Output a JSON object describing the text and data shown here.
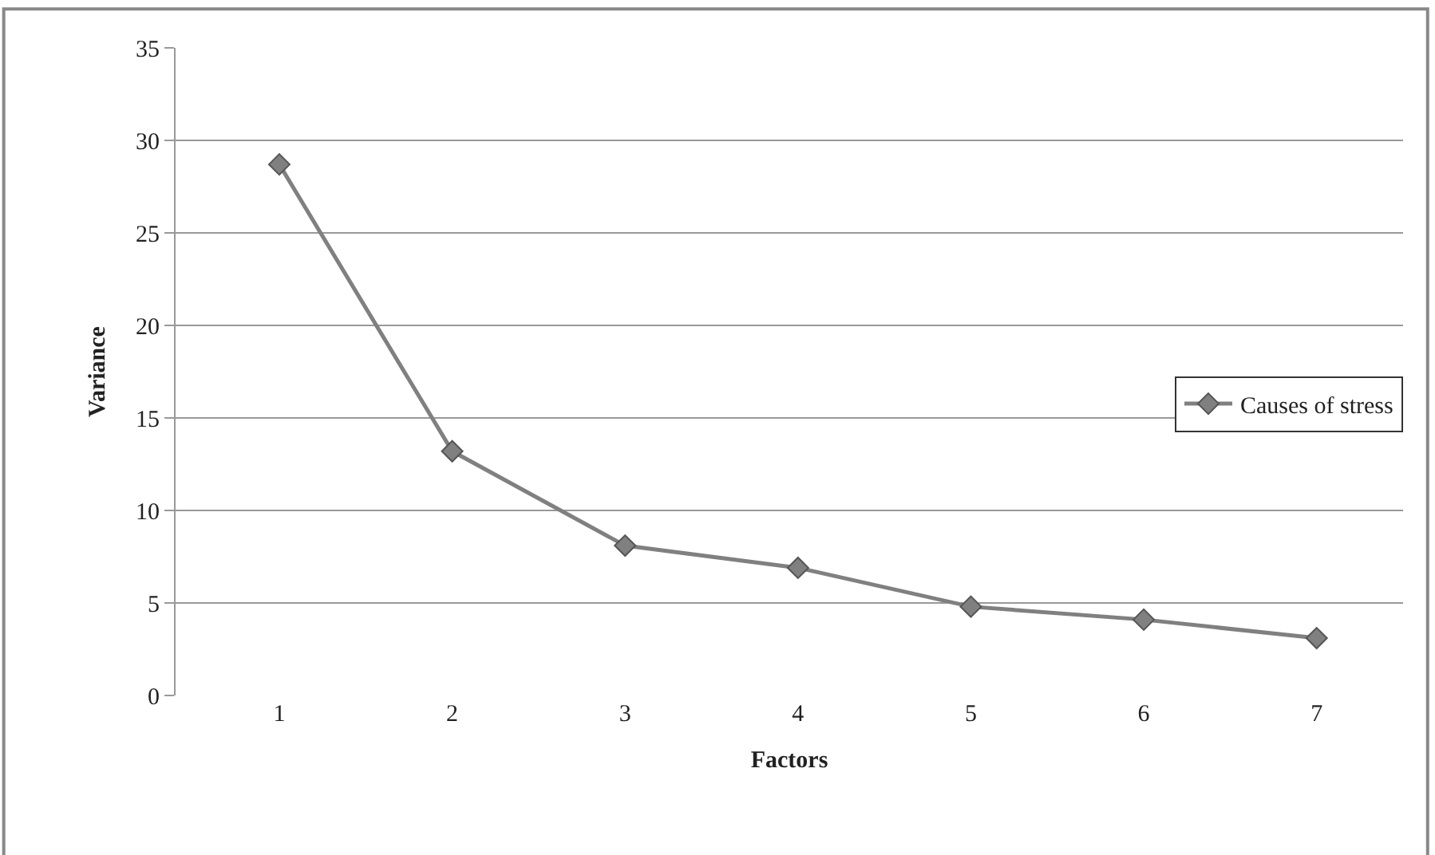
{
  "chart_data": {
    "type": "line",
    "xlabel": "Factors",
    "ylabel": "Variance",
    "categories": [
      "1",
      "2",
      "3",
      "4",
      "5",
      "6",
      "7"
    ],
    "series": [
      {
        "name": "Causes of stress",
        "color": "#808080",
        "values": [
          28.7,
          13.2,
          8.1,
          6.9,
          4.8,
          4.1,
          3.1
        ]
      }
    ],
    "ylim": [
      0,
      35
    ],
    "yticks": [
      0,
      5,
      10,
      15,
      20,
      25,
      30,
      35
    ],
    "grid": "y",
    "legend": "right",
    "marker": "diamond",
    "line_style": "solid"
  }
}
